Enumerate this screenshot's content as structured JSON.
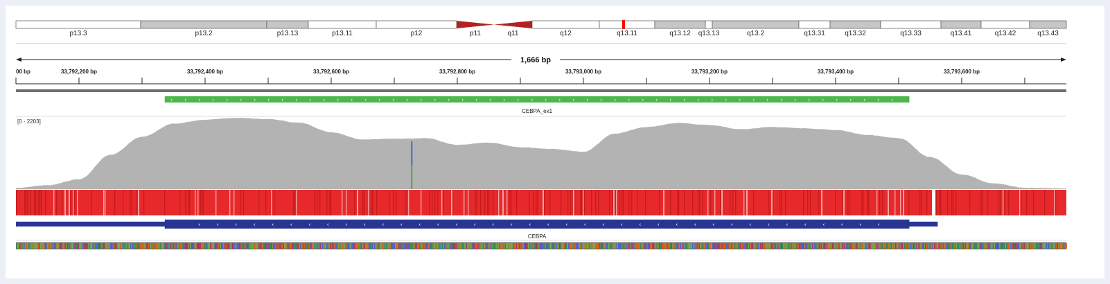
{
  "ideogram": {
    "bands": [
      {
        "name": "p13.3",
        "start": 0,
        "end": 180,
        "stain": "white"
      },
      {
        "name": "p13.2",
        "start": 180,
        "end": 362,
        "stain": "gray"
      },
      {
        "name": "p13.13",
        "start": 362,
        "end": 422,
        "stain": "gray"
      },
      {
        "name": "p13.11",
        "start": 422,
        "end": 520,
        "stain": "white"
      },
      {
        "name": "p12",
        "start": 520,
        "end": 636,
        "stain": "white"
      },
      {
        "name": "p11",
        "start": 636,
        "end": 690,
        "stain": "cen_p"
      },
      {
        "name": "q11",
        "start": 690,
        "end": 745,
        "stain": "cen_q"
      },
      {
        "name": "q12",
        "start": 745,
        "end": 842,
        "stain": "white"
      },
      {
        "name": "q13.11",
        "start": 842,
        "end": 922,
        "stain": "white"
      },
      {
        "name": "q13.12",
        "start": 922,
        "end": 995,
        "stain": "gray"
      },
      {
        "name": "q13.13",
        "start": 995,
        "end": 1005,
        "stain": "white"
      },
      {
        "name": "q13.2",
        "start": 1005,
        "end": 1130,
        "stain": "gray"
      },
      {
        "name": "q13.31",
        "start": 1130,
        "end": 1175,
        "stain": "white"
      },
      {
        "name": "q13.32",
        "start": 1175,
        "end": 1248,
        "stain": "gray"
      },
      {
        "name": "q13.33",
        "start": 1248,
        "end": 1335,
        "stain": "white"
      },
      {
        "name": "q13.41",
        "start": 1335,
        "end": 1393,
        "stain": "gray"
      },
      {
        "name": "q13.42",
        "start": 1393,
        "end": 1463,
        "stain": "white"
      },
      {
        "name": "q13.43",
        "start": 1463,
        "end": 1516,
        "stain": "gray"
      }
    ],
    "current_region_pos": 877,
    "colors": {
      "gray": "#c6c6c6",
      "centromere": "#b22222",
      "marker": "#ff0000",
      "outline": "#555555"
    }
  },
  "ruler": {
    "span_label": "1,666 bp",
    "view_start": 33792100,
    "view_end": 33793766,
    "first_tick_label": "00 bp",
    "tick_labels": [
      {
        "pos": 33792200,
        "label": "33,792,200 bp"
      },
      {
        "pos": 33792400,
        "label": "33,792,400 bp"
      },
      {
        "pos": 33792600,
        "label": "33,792,600 bp"
      },
      {
        "pos": 33792800,
        "label": "33,792,800 bp"
      },
      {
        "pos": 33793000,
        "label": "33,793,000 bp"
      },
      {
        "pos": 33793200,
        "label": "33,793,200 bp"
      },
      {
        "pos": 33793400,
        "label": "33,793,400 bp"
      },
      {
        "pos": 33793600,
        "label": "33,793,600 bp"
      }
    ],
    "minor_ticks": [
      33792100,
      33792200,
      33792300,
      33792400,
      33792500,
      33792600,
      33792700,
      33792800,
      33792900,
      33793000,
      33793100,
      33793200,
      33793300,
      33793400,
      33793500,
      33793600,
      33793700
    ]
  },
  "target_feature": {
    "name": "CEBPA_ex1",
    "start": 33792336,
    "end": 33793517,
    "strand": "+",
    "color": "#4cb84c"
  },
  "coverage": {
    "range_label": "[0 - 2203]",
    "max": 2203,
    "color": "#b3b3b3",
    "x": [
      33792100,
      33792150,
      33792200,
      33792250,
      33792300,
      33792350,
      33792400,
      33792450,
      33792500,
      33792550,
      33792600,
      33792650,
      33792700,
      33792750,
      33792800,
      33792850,
      33792900,
      33792950,
      33793000,
      33793050,
      33793100,
      33793150,
      33793200,
      33793250,
      33793300,
      33793350,
      33793400,
      33793450,
      33793500,
      33793550,
      33793600,
      33793650,
      33793700,
      33793766
    ],
    "y": [
      40,
      120,
      300,
      1050,
      1600,
      2000,
      2120,
      2180,
      2140,
      2030,
      1740,
      1520,
      1540,
      1560,
      1350,
      1420,
      1280,
      1230,
      1140,
      1700,
      1900,
      2020,
      1960,
      1830,
      1900,
      1860,
      1810,
      1660,
      1560,
      980,
      450,
      180,
      40,
      20
    ],
    "variant_pos": 33792728,
    "variant_colors": [
      "#1a3fbf",
      "#1a9a1a"
    ]
  },
  "heatmap": {
    "base_color": "#e8292b",
    "dark_color": "#c81c1c",
    "light_color": "#f4a0a0",
    "gap_pos": 33793555
  },
  "gene": {
    "name": "CEBPA",
    "start": 33792100,
    "end": 33793562,
    "thick_start": 33792336,
    "thick_end": 33793517,
    "strand": "-",
    "color": "#283593"
  },
  "sequence": {
    "colors": [
      "#2e8b57",
      "#d95f0e",
      "#4a5fd6",
      "#8c8c2e",
      "#b03060",
      "#6aa84f"
    ]
  }
}
